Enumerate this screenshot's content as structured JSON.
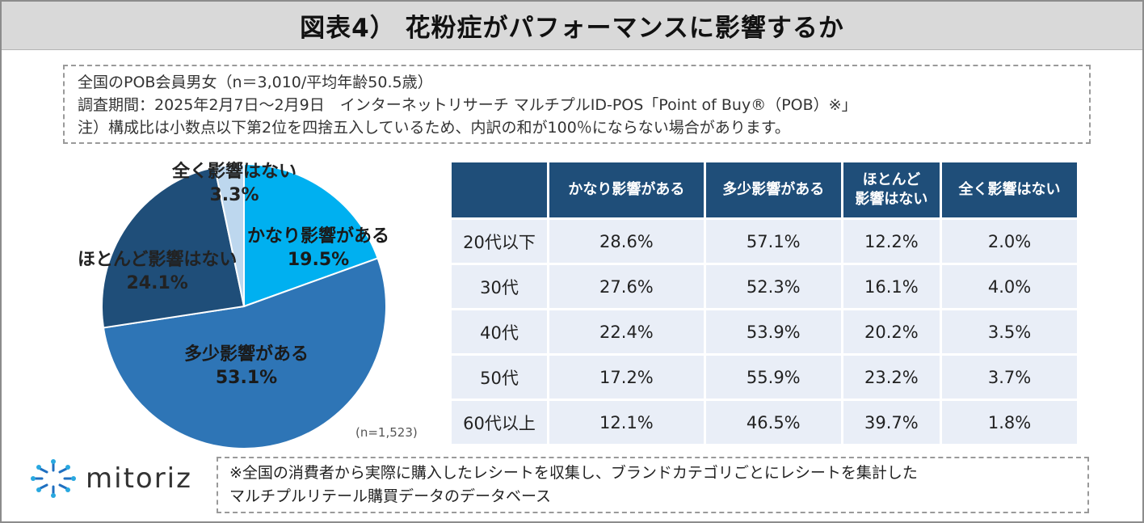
{
  "title": "図表4） 花粉症がパフォーマンスに影響するか",
  "notes": [
    "全国のPOB会員男女（n＝3,010/平均年齢50.5歳）",
    "調査期間：2025年2月7日～2月9日　インターネットリサーチ マルチプルID-POS「Point of Buy®（POB）※」",
    "注）構成比は小数点以下第2位を四捨五入しているため、内訳の和が100％にならない場合があります。"
  ],
  "pie": {
    "n_label": "(n=1,523)",
    "slice_names": [
      "かなり影響がある",
      "多少影響がある",
      "ほとんど影響はない",
      "全く影響はない"
    ],
    "slice_pcts": [
      "19.5%",
      "53.1%",
      "24.1%",
      "3.3%"
    ]
  },
  "chart_data": [
    {
      "type": "pie",
      "title": "",
      "labels": [
        "かなり影響がある",
        "多少影響がある",
        "ほとんど影響はない",
        "全く影響はない"
      ],
      "values": [
        19.5,
        53.1,
        24.1,
        3.3
      ],
      "colors": [
        "#00b0f0",
        "#2e75b6",
        "#1f4e79",
        "#bdd7ee"
      ],
      "note": "(n=1,523)"
    },
    {
      "type": "table",
      "columns": [
        "",
        "かなり影響がある",
        "多少影響がある",
        "ほとんど\n影響はない",
        "全く影響はない"
      ],
      "column_lines": [
        [
          "かなり影響がある"
        ],
        [
          "多少影響がある"
        ],
        [
          "ほとんど",
          "影響はない"
        ],
        [
          "全く影響はない"
        ]
      ],
      "rows": [
        [
          "20代以下",
          "28.6%",
          "57.1%",
          "12.2%",
          "2.0%"
        ],
        [
          "30代",
          "27.6%",
          "52.3%",
          "16.1%",
          "4.0%"
        ],
        [
          "40代",
          "22.4%",
          "53.9%",
          "20.2%",
          "3.5%"
        ],
        [
          "50代",
          "17.2%",
          "55.9%",
          "23.2%",
          "3.7%"
        ],
        [
          "60代以上",
          "12.1%",
          "46.5%",
          "39.7%",
          "1.8%"
        ]
      ]
    }
  ],
  "brand": {
    "name": "mitoriz"
  },
  "footnote": [
    "※全国の消費者から実際に購入したレシートを収集し、ブランドカテゴリごとにレシートを集計した",
    "マルチプルリテール購買データのデータベース"
  ]
}
